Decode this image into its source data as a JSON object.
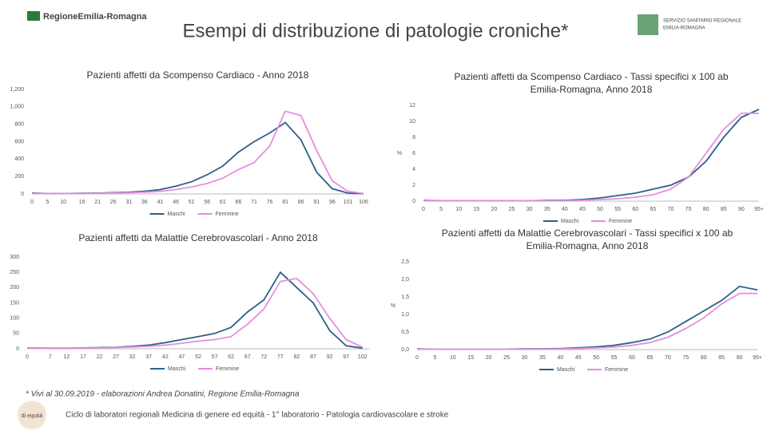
{
  "slide": {
    "title": "Esempi di distribuzione di patologie croniche*",
    "logo_left": "RegioneEmilia-Romagna",
    "logo_right": [
      "SERVIZIO SANITARIO REGIONALE",
      "EMILIA-ROMAGNA"
    ],
    "logo_bottom": "di equità",
    "footnote": "* Vivi al 30.09.2019 - elaborazioni Andrea Donatini, Regione Emilia-Romagna",
    "footer": "Ciclo di laboratori regionali Medicina di genere ed equità - 1° laboratorio - Patologia cardiovascolare e stroke"
  },
  "chart_data": [
    {
      "type": "line",
      "title": "Pazienti affetti da Scompenso Cardiaco - Anno 2018",
      "x": [
        0,
        5,
        10,
        16,
        21,
        26,
        31,
        36,
        41,
        46,
        51,
        56,
        61,
        66,
        71,
        76,
        81,
        86,
        91,
        96,
        101,
        106
      ],
      "xlim": [
        0,
        106
      ],
      "xticks": [
        0,
        5,
        10,
        16,
        21,
        26,
        31,
        36,
        41,
        46,
        51,
        56,
        61,
        66,
        71,
        76,
        81,
        86,
        91,
        96,
        101,
        106
      ],
      "ylim": [
        0,
        1200
      ],
      "yticks": [
        0,
        200,
        400,
        600,
        800,
        {
          "value": 1000,
          "label": "1,000"
        },
        {
          "value": 1200,
          "label": "1,200"
        }
      ],
      "series": [
        {
          "name": "Maschi",
          "color": "#2e5f8a",
          "values": [
            10,
            5,
            5,
            8,
            10,
            15,
            20,
            30,
            50,
            90,
            140,
            220,
            320,
            480,
            600,
            700,
            820,
            620,
            250,
            60,
            10,
            3
          ]
        },
        {
          "name": "Femmine",
          "color": "#e58ee0",
          "values": [
            5,
            5,
            5,
            5,
            8,
            10,
            15,
            20,
            30,
            50,
            80,
            120,
            180,
            280,
            360,
            550,
            950,
            900,
            500,
            150,
            30,
            5
          ]
        }
      ]
    },
    {
      "type": "line",
      "title": "Pazienti affetti da Scompenso Cardiaco - Tassi specifici x 100 ab",
      "subtitle": "Emilia-Romagna,  Anno 2018",
      "ylabel": "%",
      "x": [
        0,
        5,
        10,
        15,
        20,
        25,
        30,
        35,
        40,
        45,
        50,
        55,
        60,
        65,
        70,
        75,
        80,
        85,
        90,
        95
      ],
      "xlim": [
        0,
        95
      ],
      "xticks": [
        0,
        5,
        10,
        15,
        20,
        25,
        30,
        35,
        40,
        45,
        50,
        55,
        60,
        65,
        70,
        75,
        80,
        85,
        90,
        {
          "value": 95,
          "label": "95+"
        }
      ],
      "ylim": [
        0,
        12
      ],
      "yticks": [
        0,
        2,
        4,
        6,
        8,
        10,
        12
      ],
      "series": [
        {
          "name": "Maschi",
          "color": "#2e5f8a",
          "values": [
            0.1,
            0.05,
            0.05,
            0.05,
            0.05,
            0.05,
            0.05,
            0.1,
            0.1,
            0.2,
            0.4,
            0.7,
            1.0,
            1.5,
            2.0,
            3,
            5,
            8,
            10.5,
            11.5
          ]
        },
        {
          "name": "Femmine",
          "color": "#e58ee0",
          "values": [
            0.05,
            0.05,
            0.05,
            0.05,
            0.05,
            0.05,
            0.05,
            0.05,
            0.05,
            0.1,
            0.2,
            0.3,
            0.5,
            0.8,
            1.5,
            3,
            6,
            9,
            11,
            11
          ]
        }
      ]
    },
    {
      "type": "line",
      "title": "Pazienti affetti da Malattie Cerebrovascolari - Anno 2018",
      "x": [
        0,
        7,
        12,
        17,
        22,
        27,
        32,
        37,
        42,
        47,
        52,
        57,
        62,
        67,
        72,
        77,
        82,
        87,
        92,
        97,
        102
      ],
      "xlim": [
        0,
        104
      ],
      "xticks": [
        0,
        7,
        12,
        17,
        22,
        27,
        32,
        37,
        42,
        47,
        52,
        57,
        62,
        67,
        72,
        77,
        82,
        87,
        92,
        97,
        102
      ],
      "ylim": [
        0,
        300
      ],
      "yticks": [
        0,
        50,
        100,
        150,
        200,
        250,
        300
      ],
      "series": [
        {
          "name": "Maschi",
          "color": "#2e5f8a",
          "values": [
            3,
            2,
            2,
            3,
            4,
            5,
            8,
            12,
            20,
            30,
            40,
            50,
            70,
            120,
            160,
            250,
            200,
            150,
            60,
            10,
            2
          ]
        },
        {
          "name": "Femmine",
          "color": "#e58ee0",
          "values": [
            2,
            2,
            2,
            2,
            3,
            4,
            6,
            8,
            12,
            18,
            25,
            30,
            40,
            80,
            130,
            220,
            230,
            180,
            100,
            30,
            5
          ]
        }
      ]
    },
    {
      "type": "line",
      "title": "Pazienti affetti da Malattie Cerebrovascolari - Tassi specifici x 100 ab",
      "subtitle": "Emilia-Romagna,  Anno 2018",
      "ylabel": "%",
      "x": [
        0,
        5,
        10,
        15,
        20,
        25,
        30,
        35,
        40,
        45,
        50,
        55,
        60,
        65,
        70,
        75,
        80,
        85,
        90,
        95
      ],
      "xlim": [
        0,
        95
      ],
      "xticks": [
        0,
        5,
        10,
        15,
        20,
        25,
        30,
        35,
        40,
        45,
        50,
        55,
        60,
        65,
        70,
        75,
        80,
        85,
        90,
        {
          "value": 95,
          "label": "95+"
        }
      ],
      "ylim": [
        0,
        2.5
      ],
      "yticks": [
        {
          "value": 0,
          "label": "0,0"
        },
        {
          "value": 0.5,
          "label": "0,5"
        },
        {
          "value": 1,
          "label": "1,0"
        },
        {
          "value": 1.5,
          "label": "1,5"
        },
        {
          "value": 2,
          "label": "2,0"
        },
        {
          "value": 2.5,
          "label": "2,5"
        }
      ],
      "series": [
        {
          "name": "Maschi",
          "color": "#2e5f8a",
          "values": [
            0.02,
            0.01,
            0.01,
            0.01,
            0.01,
            0.01,
            0.02,
            0.02,
            0.03,
            0.05,
            0.08,
            0.12,
            0.2,
            0.3,
            0.5,
            0.8,
            1.1,
            1.4,
            1.8,
            1.7
          ]
        },
        {
          "name": "Femmine",
          "color": "#e58ee0",
          "values": [
            0.01,
            0.01,
            0.01,
            0.01,
            0.01,
            0.01,
            0.01,
            0.01,
            0.02,
            0.03,
            0.05,
            0.07,
            0.12,
            0.2,
            0.35,
            0.6,
            0.9,
            1.3,
            1.6,
            1.6
          ]
        }
      ]
    }
  ]
}
